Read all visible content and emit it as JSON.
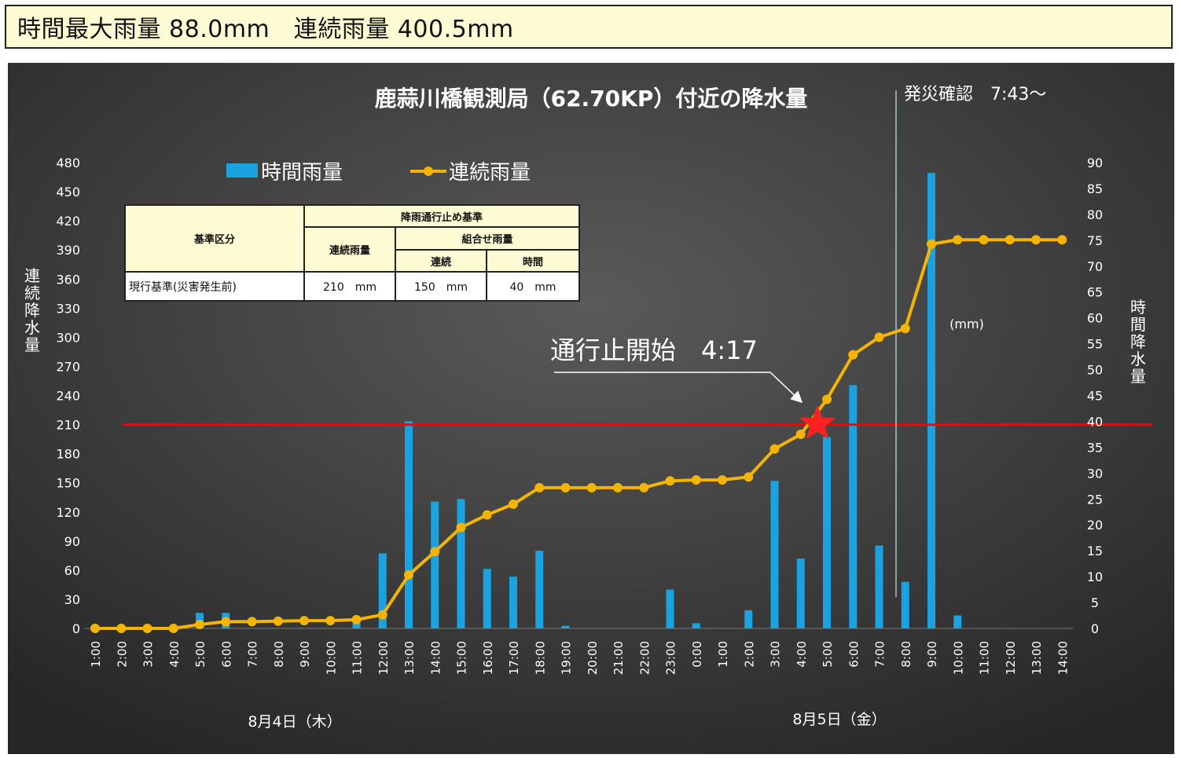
{
  "summary": {
    "text": "時間最大雨量 88.0mm　連続雨量 400.5mm"
  },
  "chart_data": {
    "type": "bar",
    "title": "鹿蒜川橋観測局（62.70KP）付近の降水量",
    "categories": [
      "1:00",
      "2:00",
      "3:00",
      "4:00",
      "5:00",
      "6:00",
      "7:00",
      "8:00",
      "9:00",
      "10:00",
      "11:00",
      "12:00",
      "13:00",
      "14:00",
      "15:00",
      "16:00",
      "17:00",
      "18:00",
      "19:00",
      "20:00",
      "21:00",
      "22:00",
      "23:00",
      "0:00",
      "1:00",
      "2:00",
      "3:00",
      "4:00",
      "5:00",
      "6:00",
      "7:00",
      "8:00",
      "9:00",
      "10:00",
      "11:00",
      "12:00",
      "13:00",
      "14:00"
    ],
    "series": [
      {
        "name": "時間雨量",
        "kind": "bar",
        "axis": "right",
        "color": "#1aa3e0",
        "values": [
          0,
          0,
          0,
          0,
          3,
          3,
          0,
          0,
          0,
          0,
          1.5,
          14.5,
          40,
          24.5,
          25,
          11.5,
          10,
          15,
          0.5,
          0,
          0,
          0,
          7.5,
          1,
          0,
          3.5,
          28.5,
          13.5,
          37,
          47,
          16,
          9,
          88,
          2.5,
          0,
          0,
          0,
          0
        ]
      },
      {
        "name": "連続雨量",
        "kind": "line",
        "axis": "left",
        "color": "#f5b400",
        "values": [
          0,
          0,
          0,
          0,
          4,
          7,
          7,
          7.5,
          8,
          8,
          9,
          14,
          55,
          79,
          104,
          117,
          128,
          145,
          145,
          145,
          145,
          145,
          152,
          153,
          153,
          156,
          185,
          200,
          236,
          282,
          300,
          309,
          396,
          400.5,
          400.5,
          400.5,
          400.5,
          400.5
        ]
      }
    ],
    "y_left": {
      "label": "連続降水量",
      "min": 0,
      "max": 480,
      "ticks": [
        "0",
        "30",
        "60",
        "90",
        "120",
        "150",
        "180",
        "210",
        "240",
        "270",
        "300",
        "330",
        "360",
        "390",
        "420",
        "450",
        "480"
      ]
    },
    "y_right": {
      "label": "時間降水量",
      "unit": "(mm)",
      "min": 0,
      "max": 90,
      "ticks": [
        "0",
        "5",
        "10",
        "15",
        "20",
        "25",
        "30",
        "35",
        "40",
        "45",
        "50",
        "55",
        "60",
        "65",
        "70",
        "75",
        "80",
        "85",
        "90"
      ]
    },
    "threshold": {
      "value": 210,
      "color": "#ff0000"
    },
    "date_labels": [
      "8月4日（木）",
      "8月5日（金）"
    ],
    "annotations": {
      "closure": {
        "text": "通行止開始　4:17",
        "color": "#ff2020"
      },
      "disaster": {
        "text": "発災確認　7:43～"
      }
    },
    "legend": {
      "placement": "top-left"
    },
    "colors": {
      "background": "#3a3a3a",
      "text": "#ffffff",
      "bar": "#1aa3e0",
      "line": "#f5b400",
      "threshold": "#ff0000"
    }
  },
  "criteria_table": {
    "header_col1": "基準区分",
    "header_group": "降雨通行止め基準",
    "header_continuous": "連続雨量",
    "header_combo": "組合せ雨量",
    "header_combo_cont": "連続",
    "header_combo_hour": "時間",
    "row_label": "現行基準(災害発生前)",
    "row_continuous": "210　mm",
    "row_combo_cont": "150　mm",
    "row_combo_hour": "40　mm"
  }
}
